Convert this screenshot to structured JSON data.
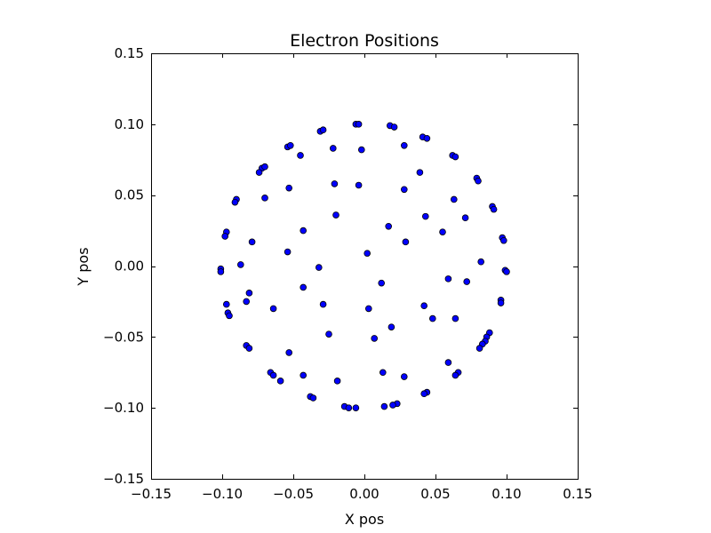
{
  "chart_data": {
    "type": "scatter",
    "title": "Electron Positions",
    "xlabel": "X pos",
    "ylabel": "Y pos",
    "xlim": [
      -0.15,
      0.15
    ],
    "ylim": [
      -0.15,
      0.15
    ],
    "xticks": [
      -0.15,
      -0.1,
      -0.05,
      0.0,
      0.05,
      0.1,
      0.15
    ],
    "yticks": [
      -0.15,
      -0.1,
      -0.05,
      0.0,
      0.05,
      0.1,
      0.15
    ],
    "xtick_labels": [
      "−0.15",
      "−0.10",
      "−0.05",
      "0.00",
      "0.05",
      "0.10",
      "0.15"
    ],
    "ytick_labels": [
      "−0.15",
      "−0.10",
      "−0.05",
      "0.00",
      "0.05",
      "0.10",
      "0.15"
    ],
    "grid": false,
    "marker_color": "#0000ff",
    "series": [
      {
        "points": [
          [
            -0.006,
            0.1
          ],
          [
            -0.004,
            0.1
          ],
          [
            0.018,
            0.099
          ],
          [
            0.021,
            0.098
          ],
          [
            -0.031,
            0.095
          ],
          [
            -0.029,
            0.096
          ],
          [
            0.041,
            0.091
          ],
          [
            0.044,
            0.09
          ],
          [
            -0.054,
            0.084
          ],
          [
            -0.052,
            0.085
          ],
          [
            0.028,
            0.085
          ],
          [
            -0.022,
            0.083
          ],
          [
            -0.002,
            0.082
          ],
          [
            0.062,
            0.078
          ],
          [
            0.064,
            0.077
          ],
          [
            -0.045,
            0.078
          ],
          [
            -0.072,
            0.069
          ],
          [
            -0.07,
            0.07
          ],
          [
            -0.074,
            0.066
          ],
          [
            0.039,
            0.066
          ],
          [
            0.079,
            0.062
          ],
          [
            0.08,
            0.06
          ],
          [
            -0.021,
            0.058
          ],
          [
            -0.004,
            0.057
          ],
          [
            -0.053,
            0.055
          ],
          [
            0.028,
            0.054
          ],
          [
            -0.07,
            0.048
          ],
          [
            0.063,
            0.047
          ],
          [
            -0.09,
            0.047
          ],
          [
            -0.091,
            0.045
          ],
          [
            0.09,
            0.042
          ],
          [
            0.091,
            0.04
          ],
          [
            -0.02,
            0.036
          ],
          [
            0.043,
            0.035
          ],
          [
            0.071,
            0.034
          ],
          [
            0.017,
            0.028
          ],
          [
            -0.043,
            0.025
          ],
          [
            0.055,
            0.024
          ],
          [
            -0.097,
            0.024
          ],
          [
            -0.098,
            0.021
          ],
          [
            0.097,
            0.02
          ],
          [
            0.098,
            0.018
          ],
          [
            -0.079,
            0.017
          ],
          [
            0.029,
            0.017
          ],
          [
            -0.054,
            0.01
          ],
          [
            0.002,
            0.009
          ],
          [
            0.082,
            0.003
          ],
          [
            -0.087,
            0.001
          ],
          [
            -0.032,
            -0.001
          ],
          [
            -0.101,
            -0.002
          ],
          [
            -0.101,
            -0.004
          ],
          [
            0.099,
            -0.003
          ],
          [
            0.1,
            -0.004
          ],
          [
            0.059,
            -0.009
          ],
          [
            0.072,
            -0.011
          ],
          [
            0.012,
            -0.012
          ],
          [
            -0.043,
            -0.015
          ],
          [
            -0.081,
            -0.019
          ],
          [
            -0.083,
            -0.025
          ],
          [
            0.096,
            -0.024
          ],
          [
            0.096,
            -0.026
          ],
          [
            -0.097,
            -0.027
          ],
          [
            -0.029,
            -0.027
          ],
          [
            0.042,
            -0.028
          ],
          [
            -0.064,
            -0.03
          ],
          [
            0.003,
            -0.03
          ],
          [
            -0.096,
            -0.033
          ],
          [
            -0.095,
            -0.035
          ],
          [
            0.048,
            -0.037
          ],
          [
            0.064,
            -0.037
          ],
          [
            0.019,
            -0.043
          ],
          [
            -0.025,
            -0.048
          ],
          [
            0.088,
            -0.047
          ],
          [
            0.086,
            -0.05
          ],
          [
            0.007,
            -0.051
          ],
          [
            0.085,
            -0.053
          ],
          [
            0.083,
            -0.055
          ],
          [
            -0.083,
            -0.056
          ],
          [
            0.081,
            -0.058
          ],
          [
            -0.081,
            -0.058
          ],
          [
            -0.053,
            -0.061
          ],
          [
            0.059,
            -0.068
          ],
          [
            0.013,
            -0.075
          ],
          [
            -0.066,
            -0.075
          ],
          [
            -0.064,
            -0.077
          ],
          [
            0.066,
            -0.075
          ],
          [
            0.064,
            -0.077
          ],
          [
            -0.043,
            -0.077
          ],
          [
            0.028,
            -0.078
          ],
          [
            -0.059,
            -0.081
          ],
          [
            -0.019,
            -0.081
          ],
          [
            0.044,
            -0.089
          ],
          [
            0.042,
            -0.09
          ],
          [
            -0.038,
            -0.092
          ],
          [
            -0.036,
            -0.093
          ],
          [
            0.023,
            -0.097
          ],
          [
            0.02,
            -0.098
          ],
          [
            -0.014,
            -0.099
          ],
          [
            -0.011,
            -0.1
          ],
          [
            0.014,
            -0.099
          ],
          [
            -0.006,
            -0.1
          ]
        ]
      }
    ]
  }
}
